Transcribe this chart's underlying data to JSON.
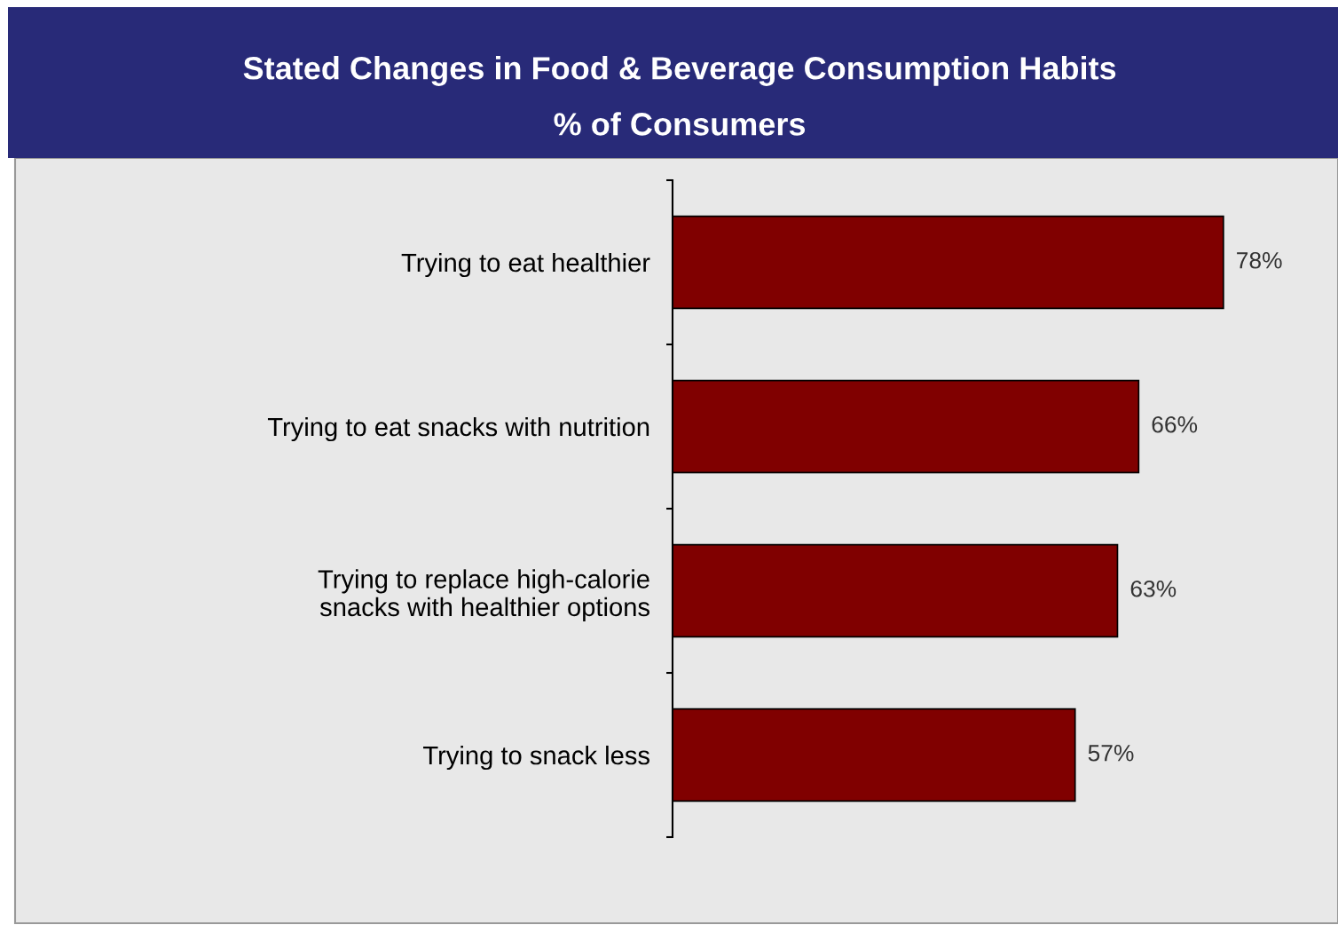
{
  "chart_data": {
    "type": "bar",
    "orientation": "horizontal",
    "title": "Stated Changes in Food & Beverage Consumption Habits",
    "subtitle": "% of Consumers",
    "categories": [
      "Trying to eat healthier",
      "Trying to eat snacks with nutrition",
      "Trying to replace high-calorie\nsnacks with healthier options",
      "Trying to snack less"
    ],
    "values": [
      78,
      66,
      63,
      57
    ],
    "value_labels": [
      "78%",
      "66%",
      "63%",
      "57%"
    ],
    "color": "#800000",
    "grid": false,
    "legend": false,
    "tick_labels": "y"
  }
}
